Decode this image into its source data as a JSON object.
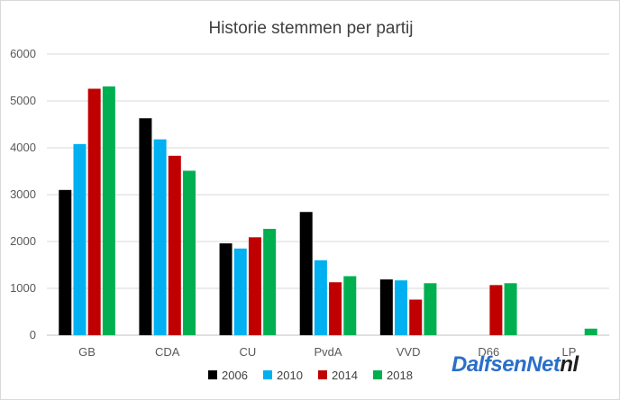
{
  "chart_data": {
    "type": "bar",
    "title": "Historie stemmen per partij",
    "xlabel": "",
    "ylabel": "",
    "categories": [
      "GB",
      "CDA",
      "CU",
      "PvdA",
      "VVD",
      "D66",
      "LP"
    ],
    "ylim": [
      0,
      6000
    ],
    "yticks": [
      0,
      1000,
      2000,
      3000,
      4000,
      5000,
      6000
    ],
    "grid": true,
    "legend_position": "bottom",
    "series": [
      {
        "name": "2006",
        "color": "#000000",
        "values": [
          3100,
          4630,
          1960,
          2630,
          1190,
          null,
          null
        ]
      },
      {
        "name": "2010",
        "color": "#00b0f0",
        "values": [
          4080,
          4180,
          1850,
          1600,
          1170,
          null,
          null
        ]
      },
      {
        "name": "2014",
        "color": "#c00000",
        "values": [
          5260,
          3830,
          2090,
          1130,
          760,
          1070,
          null
        ]
      },
      {
        "name": "2018",
        "color": "#00b050",
        "values": [
          5310,
          3510,
          2270,
          1260,
          1110,
          1110,
          140
        ]
      }
    ]
  },
  "watermark": {
    "main": "DalfsenNet",
    "tld": "nl"
  }
}
